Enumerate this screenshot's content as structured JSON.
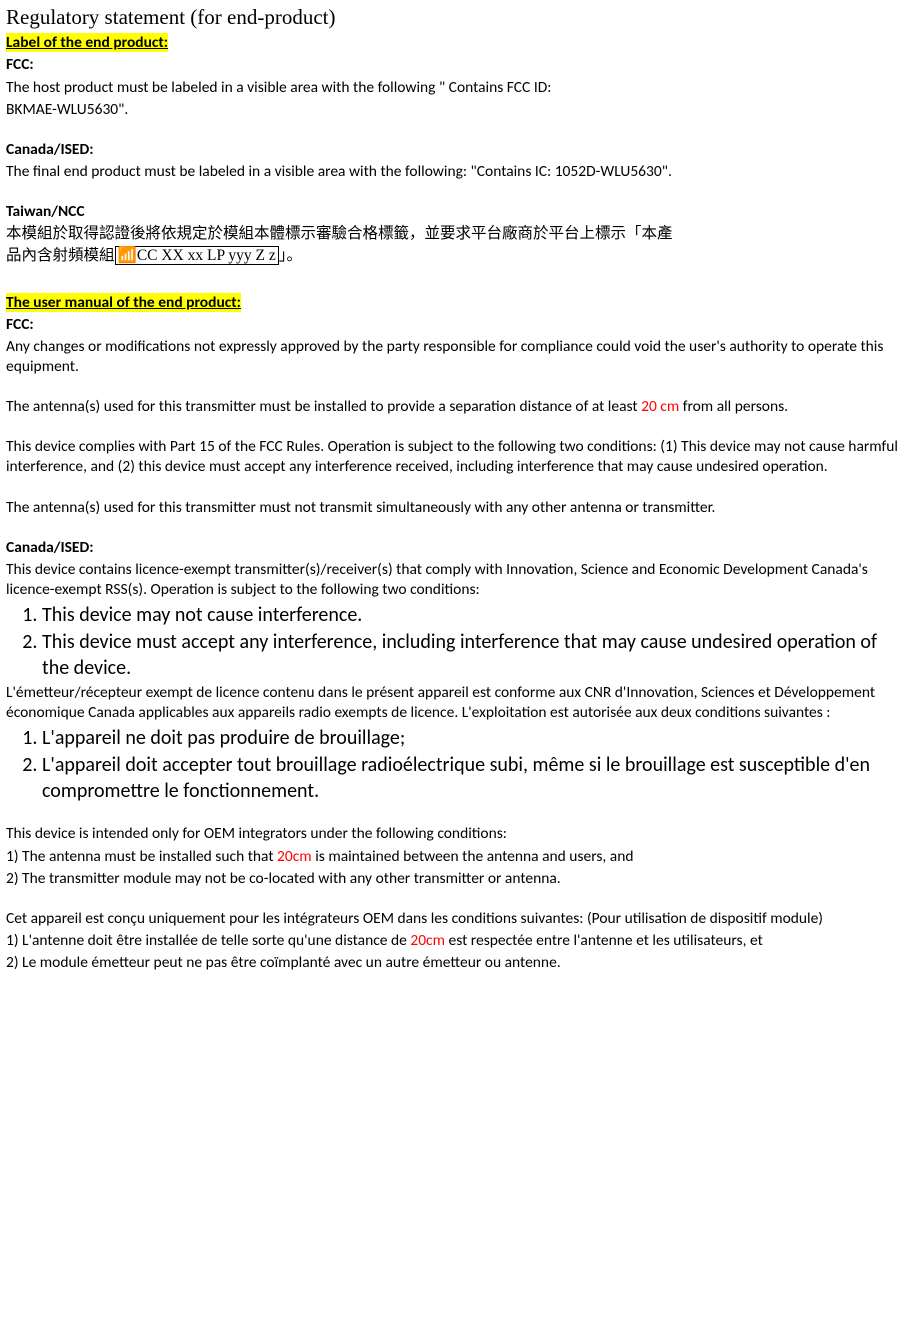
{
  "title": "Regulatory statement (for end-product)",
  "section1_header": "Label of the end product:",
  "fcc_label": "FCC:",
  "fcc_text1": "The host product must be labeled in a visible area with the following \" Contains FCC ID:",
  "fcc_text2": "BKMAE-WLU5630\".",
  "canada_label": "Canada/ISED:",
  "canada_text": "The final end product must be labeled in a visible area with the following: \"Contains IC: 1052D-WLU5630\".",
  "taiwan_label": "Taiwan/NCC",
  "taiwan_text1": "本模組於取得認證後將依規定於模組本體標示審驗合格標籤，並要求平台廠商於平台上標示「本產",
  "taiwan_text2a": "品內含射頻模組",
  "taiwan_boxed": "📶CC XX xx LP yyy Z z",
  "taiwan_text2b": "」。",
  "section2_header": "The user manual of the end product:",
  "fcc2_label": "FCC:",
  "fcc2_p1": "Any changes or modifications not expressly approved by the party responsible for compliance could void the user's authority to operate this equipment.",
  "fcc2_p2a": "The antenna(s) used for this transmitter must be installed to provide a separation distance of at least ",
  "fcc2_p2_red": "20 cm",
  "fcc2_p2b": " from all persons.",
  "fcc2_p3": "This device complies with Part 15 of the FCC Rules. Operation is subject to the following two conditions: (1) This device may not cause harmful interference, and (2) this device must accept any interference received, including interference that may cause undesired operation.",
  "fcc2_p4": "The antenna(s) used for this transmitter must not transmit simultaneously with any other antenna or transmitter.",
  "canada2_label": "Canada/ISED:",
  "canada2_p1": "This device contains licence-exempt transmitter(s)/receiver(s) that comply with Innovation, Science and Economic Development Canada's licence-exempt RSS(s). Operation is subject to the following two conditions:",
  "canada2_li1": "This device may not cause interference.",
  "canada2_li2": "This device must accept any interference, including interference that may cause undesired operation of the device.",
  "canada2_p2": "L'émetteur/récepteur exempt de licence contenu dans le présent appareil est conforme aux CNR d'Innovation, Sciences et Développement économique Canada applicables aux appareils radio exempts de licence. L'exploitation est autorisée aux deux conditions suivantes :",
  "canada2_li3": "L'appareil ne doit pas produire de brouillage;",
  "canada2_li4": "L'appareil doit accepter tout brouillage radioélectrique subi, même si le brouillage est susceptible d'en compromettre le fonctionnement.",
  "oem_p1": "This device is intended only for OEM integrators under the following conditions:",
  "oem_p2a": "1) The antenna must be installed such that ",
  "oem_p2_red": "20cm",
  "oem_p2b": " is maintained between the antenna and users, and",
  "oem_p3": "2) The transmitter module may not be co-located with any other transmitter or antenna.",
  "oem_fr_p1": "Cet appareil est conçu uniquement pour les intégrateurs OEM dans les conditions suivantes: (Pour utilisation de dispositif module)",
  "oem_fr_p2a": "1) L'antenne doit être installée de telle sorte qu'une distance de ",
  "oem_fr_p2_red": "20cm",
  "oem_fr_p2b": " est respectée entre l'antenne et les utilisateurs, et",
  "oem_fr_p3": "2) Le module émetteur peut ne pas être coïmplanté avec un autre émetteur ou antenne."
}
